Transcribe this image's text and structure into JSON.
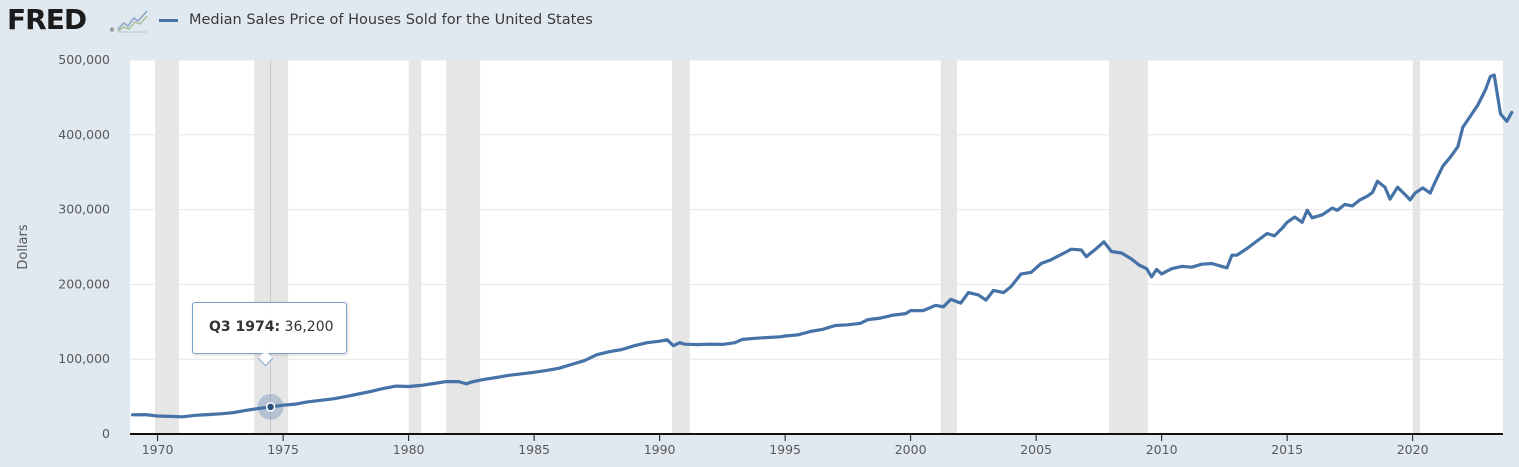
{
  "header": {
    "logo_text": "FRED",
    "logo_registered": "®",
    "logo_icon": "line-graph-icon",
    "series_label": "Median Sales Price of Houses Sold for the United States"
  },
  "tooltip": {
    "period": "Q3 1974:",
    "value": "36,200"
  },
  "colors": {
    "series": "#4572a7",
    "recession": "#e6e6e6",
    "background": "#e1e9f0",
    "plot": "#ffffff"
  },
  "chart_data": {
    "type": "line",
    "title": "",
    "ylabel": "Dollars",
    "xlabel": "",
    "xlim": [
      1968.9,
      2023.6
    ],
    "ylim": [
      0,
      500000
    ],
    "x_ticks": [
      "1970",
      "1975",
      "1980",
      "1985",
      "1990",
      "1995",
      "2000",
      "2005",
      "2010",
      "2015",
      "2020"
    ],
    "y_ticks": [
      "0",
      "100,000",
      "200,000",
      "300,000",
      "400,000",
      "500,000"
    ],
    "grid": "horizontal",
    "recessions": [
      [
        1969.9,
        1970.85
      ],
      [
        1973.85,
        1975.2
      ],
      [
        1980.0,
        1980.5
      ],
      [
        1981.5,
        1982.85
      ],
      [
        1990.5,
        1991.2
      ],
      [
        2001.2,
        2001.85
      ],
      [
        2007.9,
        2009.45
      ],
      [
        2020.0,
        2020.3
      ]
    ],
    "highlight": {
      "x": 1974.5,
      "y": 36200
    },
    "series": [
      {
        "name": "Median Sales Price of Houses Sold for the United States",
        "points": [
          [
            1969.0,
            25700
          ],
          [
            1969.5,
            25900
          ],
          [
            1970.0,
            24000
          ],
          [
            1970.5,
            23500
          ],
          [
            1971.0,
            23000
          ],
          [
            1971.5,
            25000
          ],
          [
            1972.0,
            26000
          ],
          [
            1972.5,
            27000
          ],
          [
            1973.0,
            28500
          ],
          [
            1973.5,
            31500
          ],
          [
            1974.0,
            34000
          ],
          [
            1974.5,
            36200
          ],
          [
            1975.0,
            38500
          ],
          [
            1975.5,
            40000
          ],
          [
            1976.0,
            43000
          ],
          [
            1976.5,
            45000
          ],
          [
            1977.0,
            47000
          ],
          [
            1977.5,
            50000
          ],
          [
            1978.0,
            53500
          ],
          [
            1978.5,
            57000
          ],
          [
            1979.0,
            61000
          ],
          [
            1979.5,
            64000
          ],
          [
            1980.0,
            63500
          ],
          [
            1980.5,
            65000
          ],
          [
            1981.0,
            67500
          ],
          [
            1981.5,
            70000
          ],
          [
            1982.0,
            70000
          ],
          [
            1982.3,
            67000
          ],
          [
            1982.5,
            69500
          ],
          [
            1983.0,
            73000
          ],
          [
            1983.5,
            75500
          ],
          [
            1984.0,
            78500
          ],
          [
            1984.5,
            80500
          ],
          [
            1985.0,
            82500
          ],
          [
            1985.5,
            85000
          ],
          [
            1986.0,
            88000
          ],
          [
            1986.5,
            93000
          ],
          [
            1987.0,
            98000
          ],
          [
            1987.5,
            106000
          ],
          [
            1988.0,
            110000
          ],
          [
            1988.5,
            113000
          ],
          [
            1989.0,
            118000
          ],
          [
            1989.5,
            122000
          ],
          [
            1990.0,
            124000
          ],
          [
            1990.3,
            126000
          ],
          [
            1990.55,
            118000
          ],
          [
            1990.8,
            122000
          ],
          [
            1991.0,
            120000
          ],
          [
            1991.5,
            119500
          ],
          [
            1992.0,
            120000
          ],
          [
            1992.5,
            119800
          ],
          [
            1993.0,
            122000
          ],
          [
            1993.3,
            126500
          ],
          [
            1993.8,
            128000
          ],
          [
            1994.3,
            129000
          ],
          [
            1994.8,
            130000
          ],
          [
            1995.0,
            131000
          ],
          [
            1995.5,
            132500
          ],
          [
            1996.0,
            137000
          ],
          [
            1996.5,
            140000
          ],
          [
            1997.0,
            145000
          ],
          [
            1997.5,
            146000
          ],
          [
            1998.0,
            148000
          ],
          [
            1998.3,
            153000
          ],
          [
            1998.8,
            155000
          ],
          [
            1999.3,
            159000
          ],
          [
            1999.8,
            161000
          ],
          [
            2000.0,
            165000
          ],
          [
            2000.5,
            165000
          ],
          [
            2001.0,
            172000
          ],
          [
            2001.3,
            170000
          ],
          [
            2001.6,
            180000
          ],
          [
            2002.0,
            175000
          ],
          [
            2002.3,
            189000
          ],
          [
            2002.7,
            186000
          ],
          [
            2003.0,
            179000
          ],
          [
            2003.3,
            192000
          ],
          [
            2003.7,
            189000
          ],
          [
            2004.0,
            197000
          ],
          [
            2004.4,
            214000
          ],
          [
            2004.8,
            216000
          ],
          [
            2005.2,
            228000
          ],
          [
            2005.6,
            233000
          ],
          [
            2006.0,
            240000
          ],
          [
            2006.4,
            247000
          ],
          [
            2006.8,
            246000
          ],
          [
            2007.0,
            237000
          ],
          [
            2007.4,
            248000
          ],
          [
            2007.7,
            257000
          ],
          [
            2008.0,
            244000
          ],
          [
            2008.4,
            242000
          ],
          [
            2008.8,
            234000
          ],
          [
            2009.1,
            226000
          ],
          [
            2009.4,
            221000
          ],
          [
            2009.6,
            210000
          ],
          [
            2009.8,
            220000
          ],
          [
            2010.0,
            214000
          ],
          [
            2010.4,
            221000
          ],
          [
            2010.8,
            224000
          ],
          [
            2011.2,
            223000
          ],
          [
            2011.6,
            227000
          ],
          [
            2012.0,
            228000
          ],
          [
            2012.4,
            224000
          ],
          [
            2012.6,
            222000
          ],
          [
            2012.8,
            239000
          ],
          [
            2013.0,
            239000
          ],
          [
            2013.4,
            248000
          ],
          [
            2013.8,
            258000
          ],
          [
            2014.2,
            268000
          ],
          [
            2014.5,
            265000
          ],
          [
            2014.8,
            275000
          ],
          [
            2015.0,
            283000
          ],
          [
            2015.3,
            290000
          ],
          [
            2015.6,
            283000
          ],
          [
            2015.8,
            299000
          ],
          [
            2016.0,
            289000
          ],
          [
            2016.4,
            293000
          ],
          [
            2016.8,
            302000
          ],
          [
            2017.0,
            299000
          ],
          [
            2017.3,
            307000
          ],
          [
            2017.6,
            305000
          ],
          [
            2017.9,
            313000
          ],
          [
            2018.2,
            318000
          ],
          [
            2018.4,
            323000
          ],
          [
            2018.6,
            338000
          ],
          [
            2018.9,
            330000
          ],
          [
            2019.1,
            314000
          ],
          [
            2019.4,
            330000
          ],
          [
            2019.7,
            320000
          ],
          [
            2019.9,
            313000
          ],
          [
            2020.1,
            322000
          ],
          [
            2020.4,
            329000
          ],
          [
            2020.7,
            322000
          ],
          [
            2020.9,
            337000
          ],
          [
            2021.2,
            358000
          ],
          [
            2021.5,
            370000
          ],
          [
            2021.8,
            384000
          ],
          [
            2022.0,
            410000
          ],
          [
            2022.3,
            425000
          ],
          [
            2022.6,
            440000
          ],
          [
            2022.9,
            460000
          ],
          [
            2023.1,
            478000
          ],
          [
            2023.25,
            480000
          ],
          [
            2023.5,
            428000
          ],
          [
            2023.75,
            418000
          ],
          [
            2023.95,
            430000
          ]
        ]
      }
    ]
  }
}
